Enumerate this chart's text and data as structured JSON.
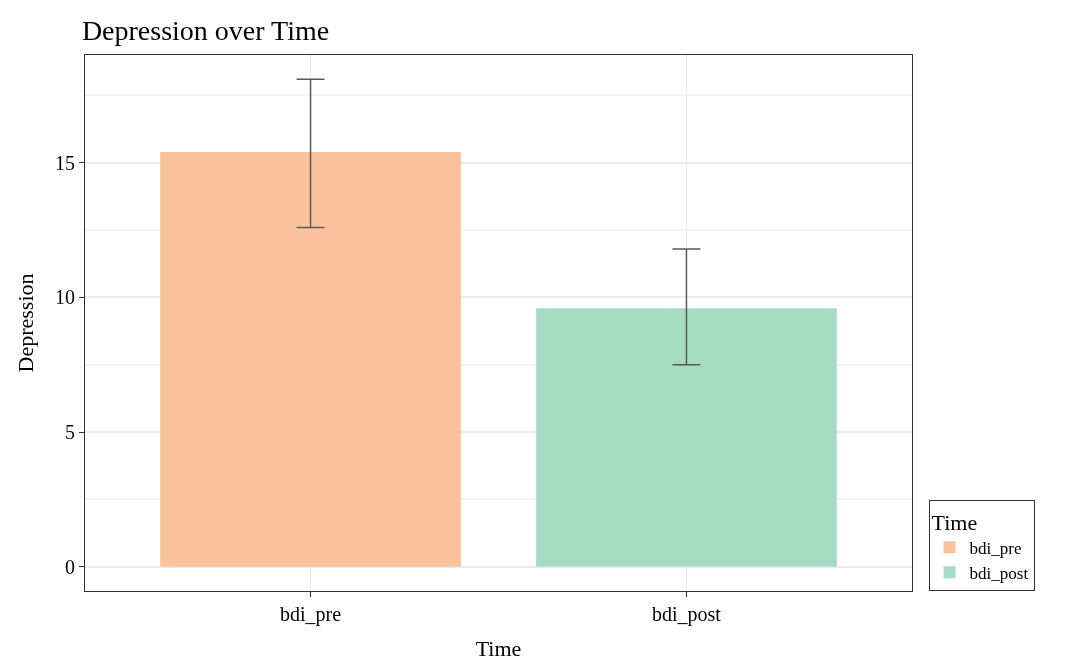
{
  "chart_data": {
    "type": "bar",
    "title": "Depression over Time",
    "xlabel": "Time",
    "ylabel": "Depression",
    "legend_title": "Time",
    "categories": [
      "bdi_pre",
      "bdi_post"
    ],
    "series": [
      {
        "name": "bdi_pre",
        "color": "#fbc39d",
        "values": [
          15.4,
          null
        ],
        "errors": [
          [
            12.6,
            18.1
          ],
          null
        ]
      },
      {
        "name": "bdi_post",
        "color": "#a6dcc3",
        "values": [
          null,
          9.6
        ],
        "errors": [
          null,
          [
            7.5,
            11.8
          ]
        ]
      }
    ],
    "ylim": [
      -0.9,
      19
    ],
    "yticks": [
      0,
      5,
      10,
      15
    ],
    "grid": true,
    "legend": "right"
  }
}
